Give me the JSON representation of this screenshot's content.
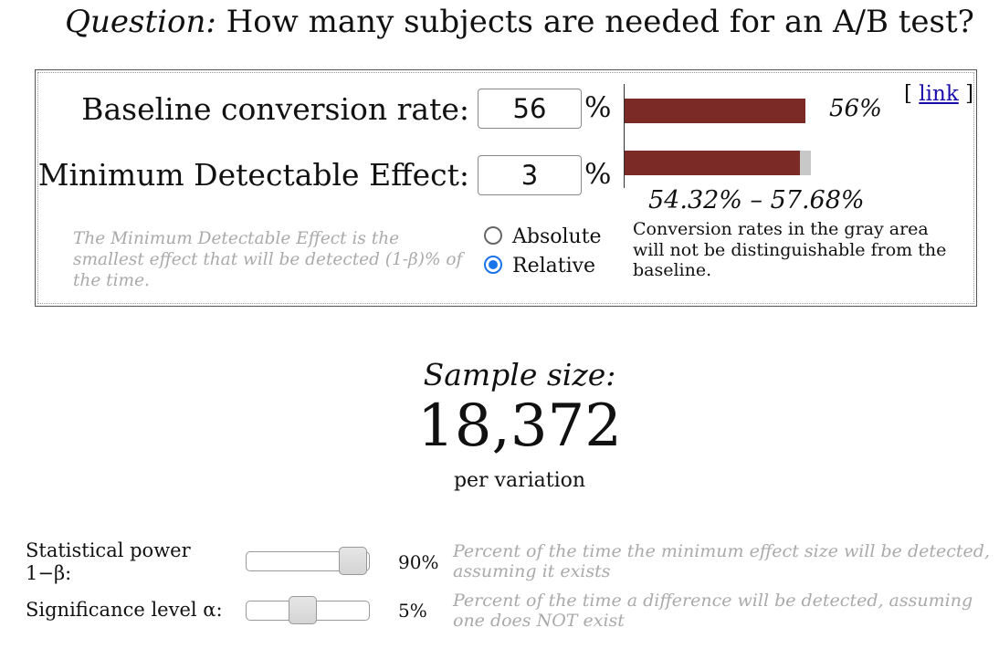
{
  "title": {
    "prefix": "Question:",
    "text": "How many subjects are needed for an A/B test?"
  },
  "baseline": {
    "label": "Baseline conversion rate:",
    "value": "56",
    "unit": "%"
  },
  "mde": {
    "label": "Minimum Detectable Effect:",
    "value": "3",
    "unit": "%",
    "help": "The Minimum Detectable Effect is the smallest effect that will be detected (1-β)% of the time."
  },
  "mode": {
    "options": [
      "Absolute",
      "Relative"
    ],
    "selected": "Relative"
  },
  "chart": {
    "baseline_pct": 56,
    "range_low_pct": 54.32,
    "range_high_pct": 57.68,
    "bar_label": "56%",
    "range_text": "54.32% – 57.68%",
    "gray_note": "Conversion rates in the gray area will not be distinguishable from the baseline.",
    "bar_color": "#7b2a26",
    "gray_color": "#c8c8c8"
  },
  "link": {
    "open": "[ ",
    "label": "link",
    "close": " ]"
  },
  "sample": {
    "title": "Sample size:",
    "value": "18,372",
    "unit": "per variation"
  },
  "power": {
    "label_line1": "Statistical power",
    "label_line2": "1−β:",
    "value": "90%",
    "level": 0.9,
    "help": "Percent of the time the minimum effect size will be detected, assuming it exists"
  },
  "alpha": {
    "label": "Significance level α:",
    "value": "5%",
    "level": 0.05,
    "help": "Percent of the time a difference will be detected, assuming one does NOT exist"
  }
}
